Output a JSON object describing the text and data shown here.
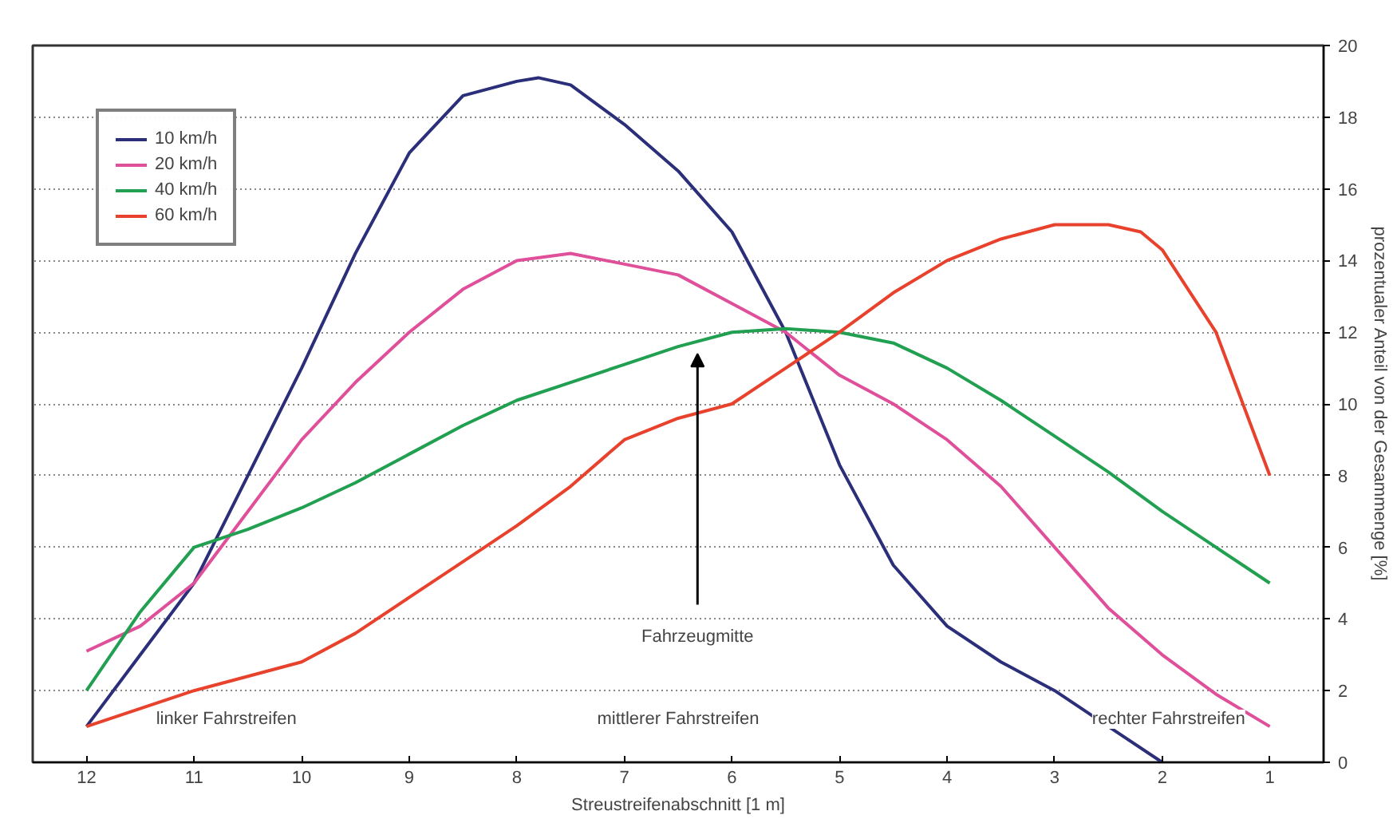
{
  "chart_data": {
    "type": "line",
    "xlabel": "Streustreifenabschnitt [1 m]",
    "ylabel": "prozentualer Anteil von der Gesammenge [%]",
    "x": [
      12,
      11.5,
      11,
      10.5,
      10,
      9.5,
      9,
      8.5,
      8,
      7.5,
      7,
      6.5,
      6,
      5.5,
      5,
      4.5,
      4,
      3.5,
      3,
      2.5,
      2,
      1.5,
      1
    ],
    "series": [
      {
        "name": "10 km/h",
        "color": "#2b2f7a",
        "x": [
          12,
          11.5,
          11,
          10.5,
          10,
          9.5,
          9,
          8.5,
          8,
          7.8,
          7.5,
          7,
          6.5,
          6,
          5.5,
          5,
          4.5,
          4,
          3.5,
          3,
          2.5,
          2
        ],
        "values": [
          1.0,
          3,
          5,
          8,
          11,
          14.2,
          17,
          18.6,
          19,
          19.1,
          18.9,
          17.8,
          16.5,
          14.8,
          12,
          8.3,
          5.5,
          3.8,
          2.8,
          2.0,
          1.0,
          0
        ]
      },
      {
        "name": "20 km/h",
        "color": "#e0509a",
        "values": [
          3.1,
          3.8,
          5,
          7,
          9,
          10.6,
          12,
          13.2,
          14,
          14.2,
          13.9,
          13.6,
          12.8,
          12,
          10.8,
          10,
          9,
          7.7,
          6,
          4.3,
          3,
          1.9,
          1
        ]
      },
      {
        "name": "40 km/h",
        "color": "#20a050",
        "values": [
          2,
          4.2,
          6,
          6.5,
          7.1,
          7.8,
          8.6,
          9.4,
          10.1,
          10.6,
          11.1,
          11.6,
          12,
          12.1,
          12,
          11.7,
          11,
          10.1,
          9.1,
          8.1,
          7,
          6,
          5
        ]
      },
      {
        "name": "60 km/h",
        "color": "#e8412c",
        "x": [
          12,
          11.5,
          11,
          10.5,
          10,
          9.5,
          9,
          8.5,
          8,
          7.5,
          7,
          6.5,
          6,
          5.5,
          5,
          4.5,
          4,
          3.5,
          3,
          2.5,
          2.2,
          2,
          1.5,
          1
        ],
        "values": [
          1,
          1.5,
          2,
          2.4,
          2.8,
          3.6,
          4.6,
          5.6,
          6.6,
          7.7,
          9,
          9.6,
          10,
          11,
          12,
          13.1,
          14,
          14.6,
          15,
          15,
          14.8,
          14.3,
          12,
          8
        ]
      }
    ],
    "xlim": [
      12.5,
      0.5
    ],
    "xticks": [
      12,
      11,
      10,
      9,
      8,
      7,
      6,
      5,
      4,
      3,
      2,
      1
    ],
    "ylim": [
      0,
      20
    ],
    "yticks": [
      0,
      2,
      4,
      6,
      8,
      10,
      12,
      14,
      16,
      18,
      20
    ],
    "annotations": [
      "Fahrzeugmitte",
      "linker Fahrstreifen",
      "mittlerer Fahrstreifen",
      "rechter Fahrstreifen"
    ],
    "grid": "y",
    "legend": "top left",
    "line_style": "solid",
    "marker": "none"
  }
}
